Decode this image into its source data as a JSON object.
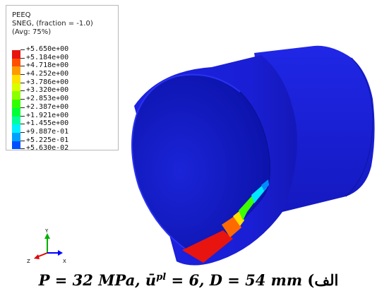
{
  "legend": {
    "variable": "PEEQ",
    "section": "SNEG, (fraction = -1.0)",
    "averaging": "(Avg: 75%)",
    "levels": [
      {
        "value": "+5.650e+00",
        "color": "#e8140f"
      },
      {
        "value": "+5.184e+00",
        "color": "#ff5000"
      },
      {
        "value": "+4.718e+00",
        "color": "#ff9a00"
      },
      {
        "value": "+4.252e+00",
        "color": "#ffe000"
      },
      {
        "value": "+3.786e+00",
        "color": "#d8ff00"
      },
      {
        "value": "+3.320e+00",
        "color": "#8cff00"
      },
      {
        "value": "+2.853e+00",
        "color": "#30ff00"
      },
      {
        "value": "+2.387e+00",
        "color": "#00ff38"
      },
      {
        "value": "+1.921e+00",
        "color": "#00ff9a"
      },
      {
        "value": "+1.455e+00",
        "color": "#00f0ff"
      },
      {
        "value": "+9.887e-01",
        "color": "#00a0ff"
      },
      {
        "value": "+5.225e-01",
        "color": "#0050ff"
      },
      {
        "value": "+5.630e-02",
        "color": "#0000ff"
      }
    ]
  },
  "triad": {
    "x_label": "X",
    "y_label": "Y",
    "z_label": "Z"
  },
  "caption": {
    "pressure": "P = 32 MPa,",
    "strain": "ū",
    "strain_sup": "pl",
    "strain_val": " = 6,",
    "diameter": "D = 54 mm",
    "label": "(الف"
  },
  "colors": {
    "body_blue": "#1a20d8",
    "inner_blue": "#0a14b8",
    "red": "#e8140f"
  }
}
